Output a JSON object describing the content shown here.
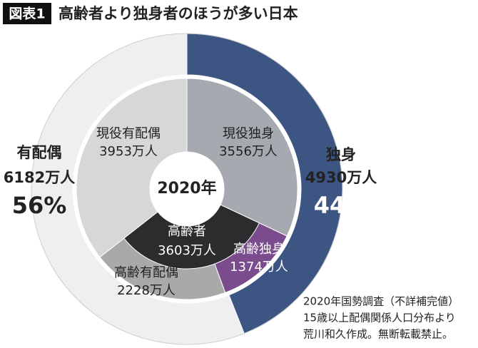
{
  "chart_data": {
    "type": "donut",
    "label_tag": "図表1",
    "title": "高齢者より独身者のほうが多い日本",
    "center_label": "2020年",
    "outer": {
      "categories": [
        "独身",
        "有配偶"
      ],
      "values": [
        4930,
        6182
      ],
      "value_labels": [
        "4930万人",
        "6182万人"
      ],
      "percents": [
        44,
        56
      ],
      "percent_labels": [
        "44%",
        "56%"
      ],
      "colors": [
        "#3d5582",
        "#efeff1"
      ]
    },
    "inner": {
      "categories": [
        "現役独身",
        "高齢独身",
        "高齢有配偶",
        "現役有配偶"
      ],
      "values": [
        3556,
        1374,
        2228,
        3953
      ],
      "value_labels": [
        "3556万人",
        "1374万人",
        "2228万人",
        "3953万人"
      ],
      "colors": [
        "#a6aab0",
        "#7a4c8d",
        "#a9a9a9",
        "#d6d7d9"
      ]
    },
    "overlay": {
      "category": "高齢者",
      "value": 3603,
      "value_label": "3603万人",
      "color": "#2c2b2d"
    },
    "source": [
      "2020年国勢調査（不詳補完値）",
      "15歳以上配偶関係人口分布より",
      "荒川和久作成。無断転載禁止。"
    ]
  }
}
